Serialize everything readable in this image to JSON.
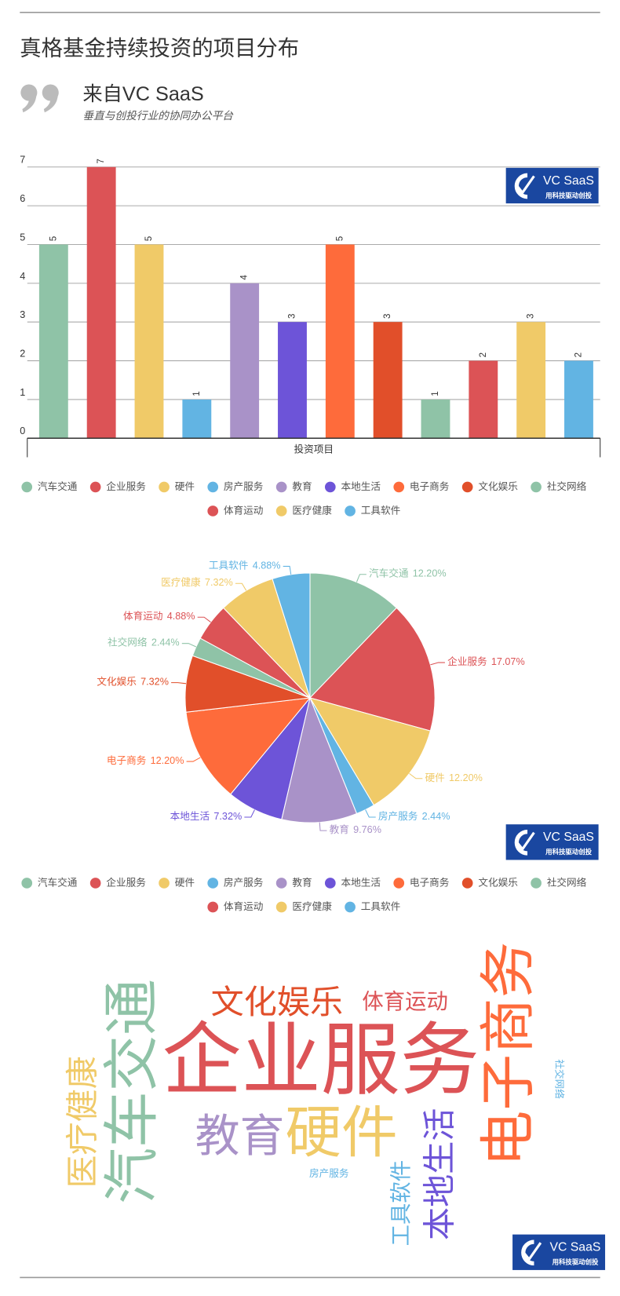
{
  "header": {
    "title": "真格基金持续投资的项目分布",
    "source": "来自VC SaaS",
    "subtitle": "垂直与创投行业的协同办公平台"
  },
  "watermark": {
    "name": "VC SaaS",
    "slogan": "用科技驱动创投"
  },
  "chart_data": [
    {
      "type": "bar",
      "xlabel": "投资项目",
      "categories": [
        "汽车交通",
        "企业服务",
        "硬件",
        "房产服务",
        "教育",
        "本地生活",
        "电子商务",
        "文化娱乐",
        "社交网络",
        "体育运动",
        "医疗健康",
        "工具软件"
      ],
      "values": [
        5,
        7,
        5,
        1,
        4,
        3,
        5,
        3,
        1,
        2,
        3,
        2
      ],
      "colors": [
        "#8fc3a7",
        "#dc5356",
        "#f0ca68",
        "#62b4e3",
        "#a992c8",
        "#6d54d8",
        "#fe6b3b",
        "#e14f2a",
        "#8fc3a7",
        "#dc5356",
        "#f0ca68",
        "#62b4e3"
      ],
      "ylim": [
        0,
        7
      ],
      "yticks": [
        0,
        1,
        2,
        3,
        4,
        5,
        6,
        7
      ],
      "grid": true,
      "legend": "bottom"
    },
    {
      "type": "pie",
      "categories": [
        "汽车交通",
        "企业服务",
        "硬件",
        "房产服务",
        "教育",
        "本地生活",
        "电子商务",
        "文化娱乐",
        "社交网络",
        "体育运动",
        "医疗健康",
        "工具软件"
      ],
      "values": [
        12.2,
        17.07,
        12.2,
        2.44,
        9.76,
        7.32,
        12.2,
        7.32,
        2.44,
        4.88,
        7.32,
        4.88
      ],
      "value_labels": [
        "12.20%",
        "17.07%",
        "12.20%",
        "2.44%",
        "9.76%",
        "7.32%",
        "12.20%",
        "7.32%",
        "2.44%",
        "4.88%",
        "7.32%",
        "4.88%"
      ],
      "colors": [
        "#8fc3a7",
        "#dc5356",
        "#f0ca68",
        "#62b4e3",
        "#a992c8",
        "#6d54d8",
        "#fe6b3b",
        "#e14f2a",
        "#8fc3a7",
        "#dc5356",
        "#f0ca68",
        "#62b4e3"
      ],
      "legend": "bottom"
    },
    {
      "type": "wordcloud",
      "categories": [
        "汽车交通",
        "企业服务",
        "硬件",
        "房产服务",
        "教育",
        "本地生活",
        "电子商务",
        "文化娱乐",
        "社交网络",
        "体育运动",
        "医疗健康",
        "工具软件"
      ],
      "values": [
        5,
        7,
        5,
        1,
        4,
        3,
        5,
        3,
        1,
        2,
        3,
        2
      ],
      "colors": [
        "#8fc3a7",
        "#dc5356",
        "#f0ca68",
        "#62b4e3",
        "#a992c8",
        "#6d54d8",
        "#fe6b3b",
        "#e14f2a",
        "#62b4e3",
        "#dc5356",
        "#f0ca68",
        "#62b4e3"
      ]
    }
  ]
}
